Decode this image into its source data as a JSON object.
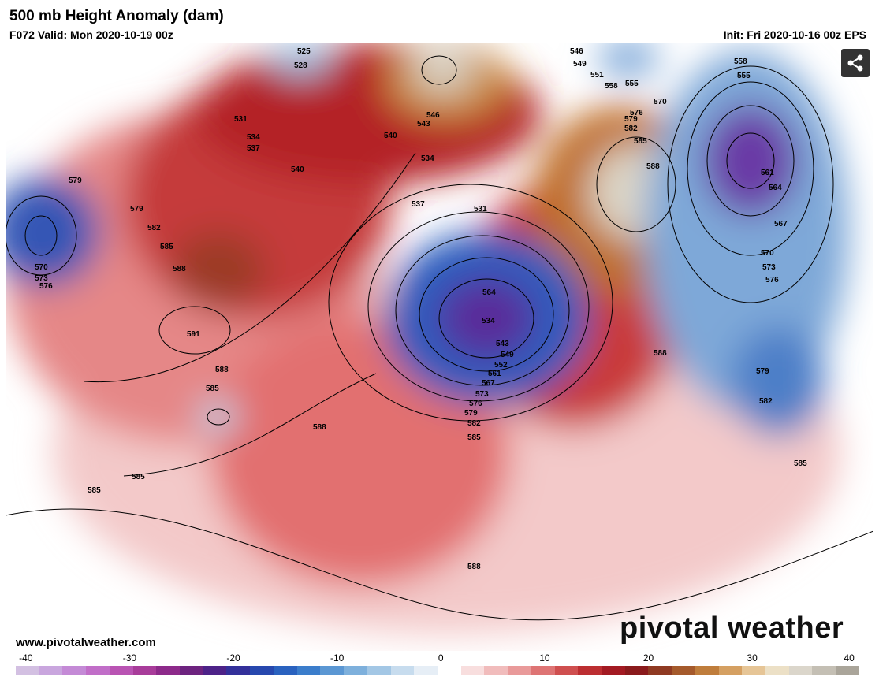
{
  "header": {
    "title": "500 mb Height Anomaly (dam)",
    "valid": "F072 Valid: Mon 2020-10-19 00z",
    "init": "Init: Fri 2020-10-16 00z EPS"
  },
  "footer": {
    "url": "www.pivotalweather.com",
    "brand": "pivotal weather"
  },
  "icons": {
    "share": "share-icon"
  },
  "contour_labels": [
    "525",
    "528",
    "531",
    "534",
    "537",
    "540",
    "543",
    "546",
    "549",
    "551",
    "552",
    "555",
    "558",
    "561",
    "564",
    "567",
    "570",
    "573",
    "576",
    "579",
    "582",
    "585",
    "588",
    "591"
  ],
  "colorbar": {
    "ticks": [
      "-40",
      "-30",
      "-20",
      "-10",
      "0",
      "10",
      "20",
      "30",
      "40"
    ],
    "colors": [
      "#d3c0e2",
      "#c9a6de",
      "#c48ad6",
      "#c16ec8",
      "#b954b3",
      "#a83c9a",
      "#8d2a8a",
      "#6d237f",
      "#4d2288",
      "#33309a",
      "#2748ae",
      "#2a62bf",
      "#3b7dcb",
      "#5b97d3",
      "#7eb0dc",
      "#a3c7e5",
      "#c7dcee",
      "#e6eef6",
      "#ffffff",
      "#f8dede",
      "#f1bcbc",
      "#e99a9a",
      "#de7474",
      "#cf4f4f",
      "#bc2e31",
      "#a31a22",
      "#8a1a1c",
      "#8f3a22",
      "#a55a2c",
      "#bf7d3c",
      "#d5a062",
      "#e6c596",
      "#ece0c6",
      "#dbd6cb",
      "#c4bfb4",
      "#aaa59a"
    ]
  }
}
